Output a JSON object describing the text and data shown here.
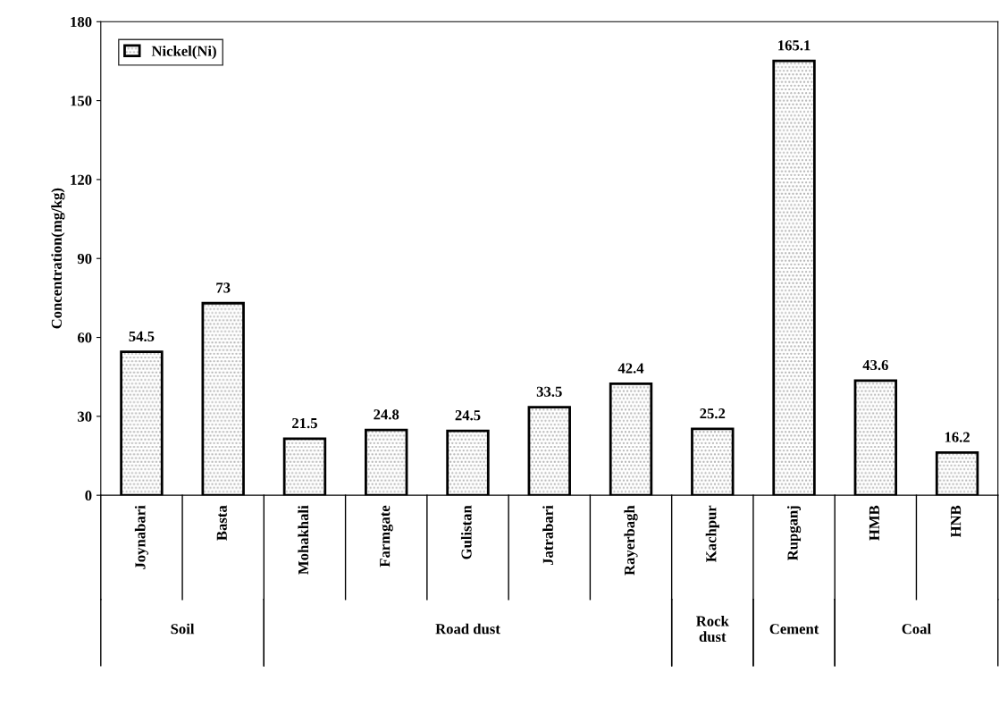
{
  "chart_data": {
    "type": "bar",
    "ylabel": "Concentration(mg/kg)",
    "categories": [
      "Joynabari",
      "Basta",
      "Mohakhali",
      "Farmgate",
      "Gulistan",
      "Jatrabari",
      "Rayerbagh",
      "Kachpur",
      "Rupganj",
      "HMB",
      "HNB"
    ],
    "series": [
      {
        "name": "Nickel(Ni)",
        "color": "#000000",
        "values": [
          54.5,
          73,
          21.5,
          24.8,
          24.5,
          33.5,
          42.4,
          25.2,
          165.1,
          43.6,
          16.2
        ]
      }
    ],
    "ylim": [
      0,
      180
    ],
    "yticks": [
      0,
      30,
      60,
      90,
      120,
      150,
      180
    ],
    "data_labels": true,
    "legend": "top left",
    "grid": false,
    "annotations": [
      "Soil",
      "Road dust",
      "Rock\ndust",
      "Cement",
      "Coal"
    ]
  }
}
